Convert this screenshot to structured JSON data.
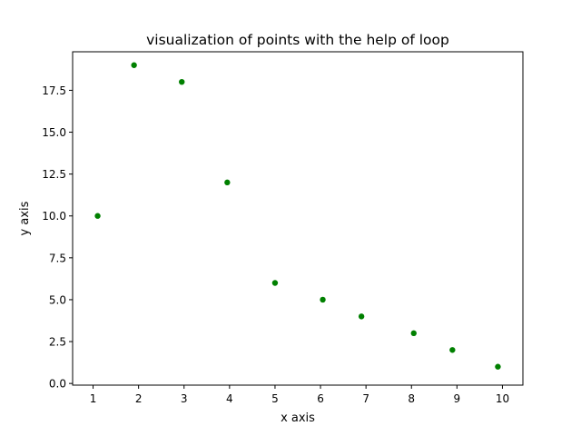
{
  "chart_data": {
    "type": "scatter",
    "title": "visualization of points with the help of loop",
    "xlabel": "x axis",
    "ylabel": "y axis",
    "xlim": [
      0.55,
      10.45
    ],
    "ylim": [
      -0.1,
      19.8
    ],
    "x_ticks": [
      1,
      2,
      3,
      4,
      5,
      6,
      7,
      8,
      9,
      10
    ],
    "x_tick_labels": [
      "1",
      "2",
      "3",
      "4",
      "5",
      "6",
      "7",
      "8",
      "9",
      "10"
    ],
    "y_ticks": [
      0.0,
      2.5,
      5.0,
      7.5,
      10.0,
      12.5,
      15.0,
      17.5
    ],
    "y_tick_labels": [
      "0.0",
      "2.5",
      "5.0",
      "7.5",
      "10.0",
      "12.5",
      "15.0",
      "17.5"
    ],
    "grid": false,
    "series": [
      {
        "color": "#008000",
        "points": [
          {
            "x": 1.1,
            "y": 10
          },
          {
            "x": 1.9,
            "y": 19
          },
          {
            "x": 2.95,
            "y": 18
          },
          {
            "x": 3.95,
            "y": 12
          },
          {
            "x": 5.0,
            "y": 6
          },
          {
            "x": 6.05,
            "y": 5
          },
          {
            "x": 6.9,
            "y": 4
          },
          {
            "x": 8.05,
            "y": 3
          },
          {
            "x": 8.9,
            "y": 2
          },
          {
            "x": 9.9,
            "y": 1
          }
        ]
      }
    ]
  }
}
